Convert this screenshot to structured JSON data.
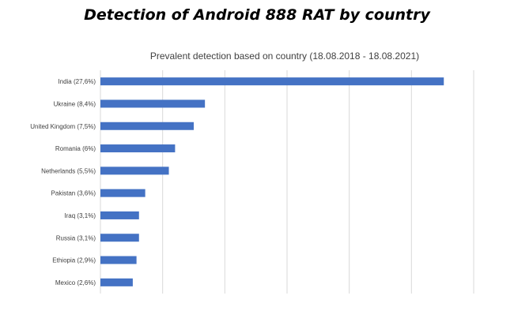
{
  "header": {
    "title": "Detection of Android 888 RAT by country"
  },
  "chart_data": {
    "type": "bar",
    "orientation": "horizontal",
    "title": "Prevalent detection based on country (18.08.2018 - 18.08.2021)",
    "categories": [
      "India (27,6%)",
      "Ukraine (8,4%)",
      "United Kingdom (7,5%)",
      "Romania (6%)",
      "Netherlands (5,5%)",
      "Pakistan (3,6%)",
      "Iraq (3,1%)",
      "Russia (3,1%)",
      "Ethiopia (2,9%)",
      "Mexico (2,6%)"
    ],
    "values": [
      27.6,
      8.4,
      7.5,
      6,
      5.5,
      3.6,
      3.1,
      3.1,
      2.9,
      2.6
    ],
    "xlim": [
      0,
      30
    ],
    "grid": true,
    "legend": "none",
    "xlabel": "",
    "ylabel": "",
    "bar_color": "#4472C4",
    "grid_color": "#D9D9D9"
  }
}
